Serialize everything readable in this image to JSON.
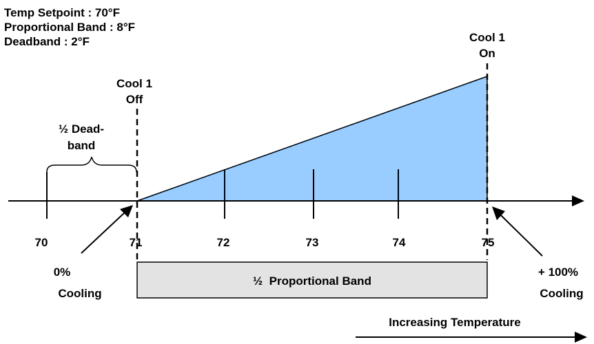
{
  "parameters": [
    "Temp Setpoint : 70°F",
    "Proportional Band : 8°F",
    "Deadband : 2°F"
  ],
  "cool_off": {
    "line1": "Cool 1",
    "line2": "Off"
  },
  "cool_on": {
    "line1": "Cool 1",
    "line2": "On"
  },
  "half_deadband": {
    "line1": "½ Dead-",
    "line2": "band"
  },
  "axis_ticks": [
    "70",
    "71",
    "72",
    "73",
    "74",
    "75"
  ],
  "zero_cooling": {
    "line1": "0%",
    "line2": "Cooling"
  },
  "full_cooling": {
    "line1": "+ 100%",
    "line2": "Cooling"
  },
  "band_label": "½  Proportional Band",
  "increasing_label": "Increasing Temperature",
  "colors": {
    "ramp_fill": "#99ccff",
    "band_fill": "#e3e3e3",
    "line": "#000000"
  }
}
